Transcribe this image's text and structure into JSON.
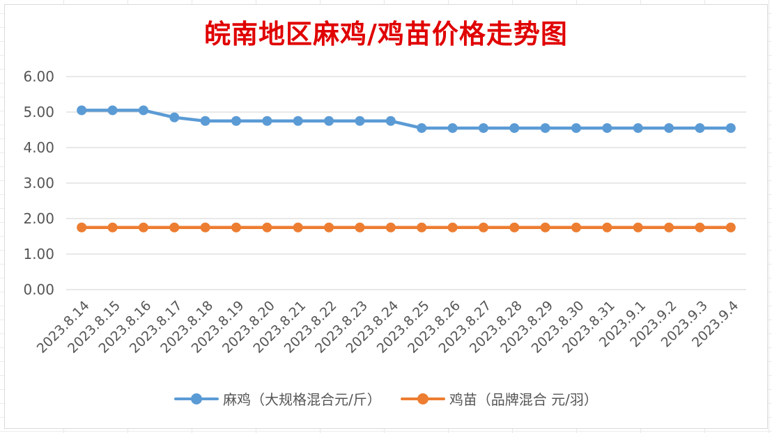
{
  "chart_data": {
    "type": "line",
    "title": "皖南地区麻鸡/鸡苗价格走势图",
    "categories": [
      "2023.8.14",
      "2023.8.15",
      "2023.8.16",
      "2023.8.17",
      "2023.8.18",
      "2023.8.19",
      "2023.8.20",
      "2023.8.21",
      "2023.8.22",
      "2023.8.23",
      "2023.8.24",
      "2023.8.25",
      "2023.8.26",
      "2023.8.27",
      "2023.8.28",
      "2023.8.29",
      "2023.8.30",
      "2023.8.31",
      "2023.9.1",
      "2023.9.2",
      "2023.9.3",
      "2023.9.4"
    ],
    "series": [
      {
        "name": "麻鸡（大规格混合元/斤）",
        "color": "#5b9bd5",
        "values": [
          5.05,
          5.05,
          5.05,
          4.85,
          4.75,
          4.75,
          4.75,
          4.75,
          4.75,
          4.75,
          4.75,
          4.55,
          4.55,
          4.55,
          4.55,
          4.55,
          4.55,
          4.55,
          4.55,
          4.55,
          4.55,
          4.55
        ]
      },
      {
        "name": "鸡苗（品牌混合 元/羽）",
        "color": "#ed7d31",
        "values": [
          1.75,
          1.75,
          1.75,
          1.75,
          1.75,
          1.75,
          1.75,
          1.75,
          1.75,
          1.75,
          1.75,
          1.75,
          1.75,
          1.75,
          1.75,
          1.75,
          1.75,
          1.75,
          1.75,
          1.75,
          1.75,
          1.75
        ]
      }
    ],
    "yticks": [
      "0.00",
      "1.00",
      "2.00",
      "3.00",
      "4.00",
      "5.00",
      "6.00"
    ],
    "ylim": [
      0,
      6
    ],
    "xlabel": "",
    "ylabel": "",
    "grid": true,
    "legend": "bottom",
    "title_color": "#e00000"
  }
}
